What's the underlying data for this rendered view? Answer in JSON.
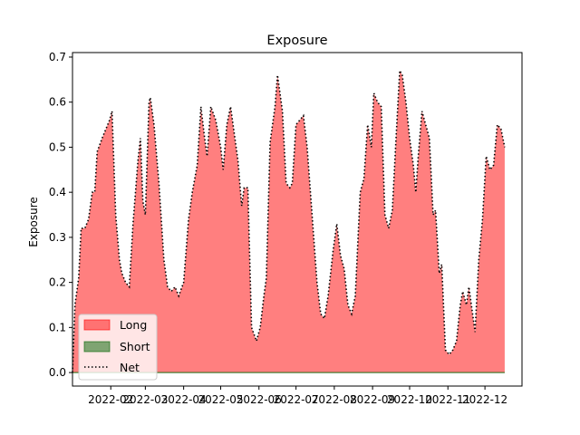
{
  "chart_data": {
    "type": "area",
    "title": "Exposure",
    "xlabel": "",
    "ylabel": "Exposure",
    "xlim": [
      "2022-01-01",
      "2022-12-31"
    ],
    "ylim": [
      -0.03,
      0.71
    ],
    "yticks": [
      0.0,
      0.1,
      0.2,
      0.3,
      0.4,
      0.5,
      0.6,
      0.7
    ],
    "ytick_labels": [
      "0.0",
      "0.1",
      "0.2",
      "0.3",
      "0.4",
      "0.5",
      "0.6",
      "0.7"
    ],
    "xticks": [
      "2022-02-01",
      "2022-03-01",
      "2022-04-01",
      "2022-05-01",
      "2022-06-01",
      "2022-07-01",
      "2022-08-01",
      "2022-09-01",
      "2022-10-01",
      "2022-11-01",
      "2022-12-01"
    ],
    "xtick_labels": [
      "2022-02",
      "2022-03",
      "2022-04",
      "2022-05",
      "2022-06",
      "2022-07",
      "2022-08",
      "2022-09",
      "2022-10",
      "2022-11",
      "2022-12"
    ],
    "legend_position": "lower-left",
    "colors": {
      "long": "#ff0000",
      "short": "#006400",
      "net": "#000000"
    },
    "series": [
      {
        "name": "Long",
        "style": "filled-area",
        "points": [
          [
            "2022-01-01",
            0.0
          ],
          [
            "2022-01-03",
            0.15
          ],
          [
            "2022-01-06",
            0.21
          ],
          [
            "2022-01-08",
            0.32
          ],
          [
            "2022-01-11",
            0.32
          ],
          [
            "2022-01-14",
            0.34
          ],
          [
            "2022-01-17",
            0.4
          ],
          [
            "2022-01-19",
            0.4
          ],
          [
            "2022-01-21",
            0.49
          ],
          [
            "2022-01-25",
            0.52
          ],
          [
            "2022-01-28",
            0.54
          ],
          [
            "2022-01-31",
            0.56
          ],
          [
            "2022-02-02",
            0.58
          ],
          [
            "2022-02-05",
            0.35
          ],
          [
            "2022-02-08",
            0.25
          ],
          [
            "2022-02-10",
            0.22
          ],
          [
            "2022-02-13",
            0.2
          ],
          [
            "2022-02-16",
            0.19
          ],
          [
            "2022-02-19",
            0.33
          ],
          [
            "2022-02-23",
            0.47
          ],
          [
            "2022-02-25",
            0.52
          ],
          [
            "2022-02-27",
            0.38
          ],
          [
            "2022-03-01",
            0.35
          ],
          [
            "2022-03-04",
            0.6
          ],
          [
            "2022-03-05",
            0.61
          ],
          [
            "2022-03-08",
            0.55
          ],
          [
            "2022-03-12",
            0.42
          ],
          [
            "2022-03-16",
            0.25
          ],
          [
            "2022-03-19",
            0.19
          ],
          [
            "2022-03-22",
            0.18
          ],
          [
            "2022-03-25",
            0.19
          ],
          [
            "2022-03-28",
            0.17
          ],
          [
            "2022-04-01",
            0.2
          ],
          [
            "2022-04-05",
            0.34
          ],
          [
            "2022-04-08",
            0.4
          ],
          [
            "2022-04-12",
            0.46
          ],
          [
            "2022-04-15",
            0.59
          ],
          [
            "2022-04-18",
            0.52
          ],
          [
            "2022-04-20",
            0.48
          ],
          [
            "2022-04-23",
            0.59
          ],
          [
            "2022-04-27",
            0.56
          ],
          [
            "2022-05-01",
            0.5
          ],
          [
            "2022-05-03",
            0.45
          ],
          [
            "2022-05-06",
            0.55
          ],
          [
            "2022-05-09",
            0.59
          ],
          [
            "2022-05-12",
            0.53
          ],
          [
            "2022-05-15",
            0.47
          ],
          [
            "2022-05-18",
            0.37
          ],
          [
            "2022-05-20",
            0.41
          ],
          [
            "2022-05-23",
            0.41
          ],
          [
            "2022-05-26",
            0.1
          ],
          [
            "2022-05-30",
            0.07
          ],
          [
            "2022-06-02",
            0.1
          ],
          [
            "2022-06-05",
            0.17
          ],
          [
            "2022-06-07",
            0.21
          ],
          [
            "2022-06-10",
            0.51
          ],
          [
            "2022-06-14",
            0.59
          ],
          [
            "2022-06-16",
            0.66
          ],
          [
            "2022-06-20",
            0.58
          ],
          [
            "2022-06-23",
            0.42
          ],
          [
            "2022-06-26",
            0.41
          ],
          [
            "2022-06-28",
            0.42
          ],
          [
            "2022-07-01",
            0.55
          ],
          [
            "2022-07-04",
            0.56
          ],
          [
            "2022-07-07",
            0.57
          ],
          [
            "2022-07-10",
            0.5
          ],
          [
            "2022-07-14",
            0.35
          ],
          [
            "2022-07-18",
            0.2
          ],
          [
            "2022-07-21",
            0.13
          ],
          [
            "2022-07-24",
            0.12
          ],
          [
            "2022-07-27",
            0.17
          ],
          [
            "2022-07-31",
            0.27
          ],
          [
            "2022-08-03",
            0.33
          ],
          [
            "2022-08-06",
            0.26
          ],
          [
            "2022-08-09",
            0.23
          ],
          [
            "2022-08-12",
            0.15
          ],
          [
            "2022-08-15",
            0.13
          ],
          [
            "2022-08-18",
            0.17
          ],
          [
            "2022-08-22",
            0.4
          ],
          [
            "2022-08-25",
            0.43
          ],
          [
            "2022-08-28",
            0.55
          ],
          [
            "2022-08-31",
            0.5
          ],
          [
            "2022-09-02",
            0.62
          ],
          [
            "2022-09-05",
            0.6
          ],
          [
            "2022-09-08",
            0.59
          ],
          [
            "2022-09-11",
            0.35
          ],
          [
            "2022-09-14",
            0.32
          ],
          [
            "2022-09-17",
            0.36
          ],
          [
            "2022-09-20",
            0.52
          ],
          [
            "2022-09-23",
            0.67
          ],
          [
            "2022-09-25",
            0.66
          ],
          [
            "2022-09-28",
            0.6
          ],
          [
            "2022-10-01",
            0.52
          ],
          [
            "2022-10-04",
            0.46
          ],
          [
            "2022-10-06",
            0.4
          ],
          [
            "2022-10-08",
            0.48
          ],
          [
            "2022-10-11",
            0.58
          ],
          [
            "2022-10-14",
            0.55
          ],
          [
            "2022-10-17",
            0.52
          ],
          [
            "2022-10-20",
            0.35
          ],
          [
            "2022-10-22",
            0.36
          ],
          [
            "2022-10-25",
            0.22
          ],
          [
            "2022-10-27",
            0.24
          ],
          [
            "2022-10-30",
            0.05
          ],
          [
            "2022-11-02",
            0.04
          ],
          [
            "2022-11-05",
            0.05
          ],
          [
            "2022-11-08",
            0.07
          ],
          [
            "2022-11-11",
            0.15
          ],
          [
            "2022-11-13",
            0.18
          ],
          [
            "2022-11-16",
            0.15
          ],
          [
            "2022-11-18",
            0.19
          ],
          [
            "2022-11-20",
            0.15
          ],
          [
            "2022-11-23",
            0.09
          ],
          [
            "2022-11-26",
            0.25
          ],
          [
            "2022-11-29",
            0.34
          ],
          [
            "2022-12-02",
            0.48
          ],
          [
            "2022-12-05",
            0.45
          ],
          [
            "2022-12-08",
            0.46
          ],
          [
            "2022-12-11",
            0.55
          ],
          [
            "2022-12-14",
            0.54
          ],
          [
            "2022-12-17",
            0.5
          ]
        ]
      },
      {
        "name": "Short",
        "style": "filled-area",
        "points": [
          [
            "2022-01-01",
            0.0
          ],
          [
            "2022-12-17",
            0.0
          ]
        ]
      },
      {
        "name": "Net",
        "style": "dotted-line",
        "same_as": "Long"
      }
    ]
  }
}
